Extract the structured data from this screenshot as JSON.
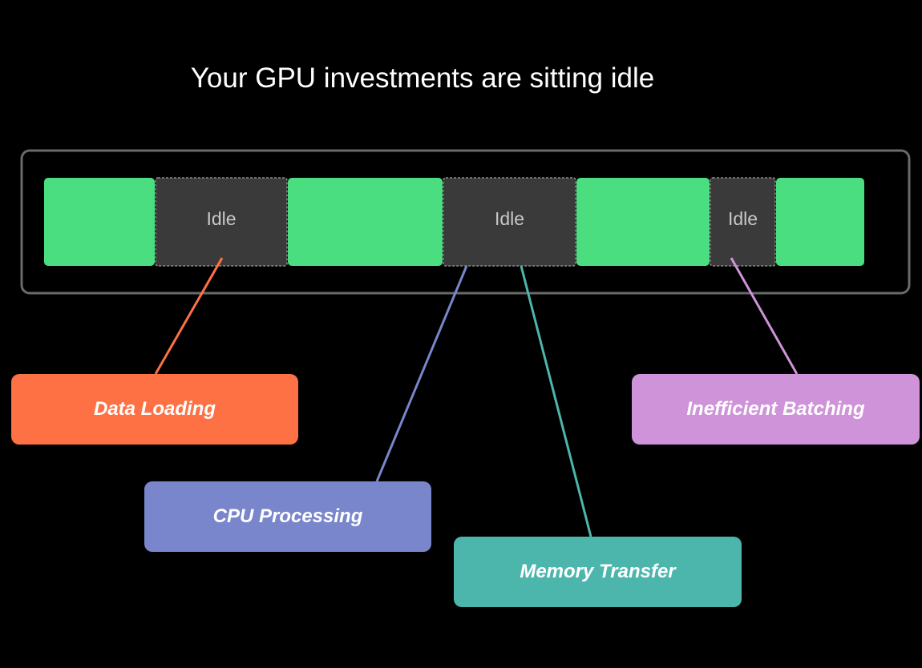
{
  "title": "Your GPU investments are sitting idle",
  "timeline": {
    "segments": [
      {
        "type": "busy",
        "label": ""
      },
      {
        "type": "idle",
        "label": "Idle"
      },
      {
        "type": "busy",
        "label": ""
      },
      {
        "type": "idle",
        "label": "Idle"
      },
      {
        "type": "busy",
        "label": ""
      },
      {
        "type": "idle",
        "label": "Idle"
      },
      {
        "type": "busy",
        "label": ""
      }
    ],
    "colors": {
      "busy": "#4ade80",
      "idle": "#3a3a3a",
      "idle_text": "#c8c8c8",
      "frame": "#6a6a6a"
    }
  },
  "causes": [
    {
      "label": "Data Loading",
      "color": "#fe7145"
    },
    {
      "label": "CPU Processing",
      "color": "#7986cb"
    },
    {
      "label": "Memory Transfer",
      "color": "#4db6ac"
    },
    {
      "label": "Inefficient Batching",
      "color": "#ce93d8"
    }
  ]
}
